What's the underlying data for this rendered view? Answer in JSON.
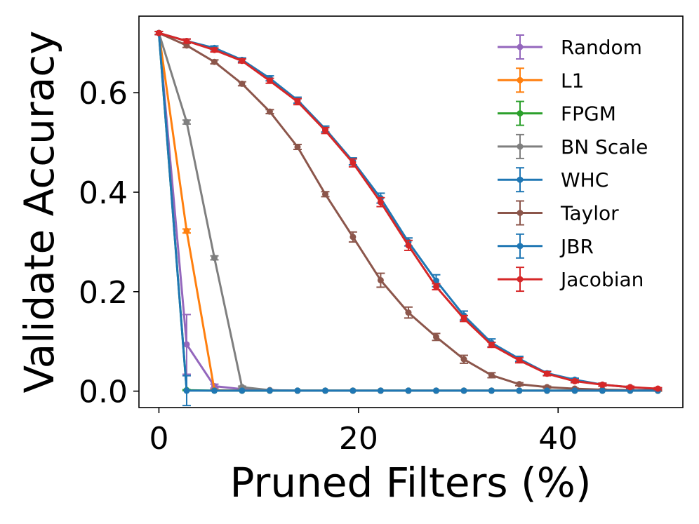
{
  "chart_data": {
    "type": "line",
    "xlabel": "Pruned Filters (%)",
    "ylabel": "Validate Accuracy",
    "xlim": [
      -2,
      52.5
    ],
    "ylim": [
      -0.033,
      0.754
    ],
    "xticks": [
      0,
      20,
      40
    ],
    "yticks": [
      0.0,
      0.2,
      0.4,
      0.6
    ],
    "legend_position": "top-right",
    "x": [
      0,
      2.78,
      5.56,
      8.33,
      11.11,
      13.89,
      16.67,
      19.44,
      22.22,
      25.0,
      27.78,
      30.56,
      33.33,
      36.11,
      38.89,
      41.67,
      44.44,
      47.22,
      50.0
    ],
    "series": [
      {
        "name": "Random",
        "color": "#9467bd",
        "values": [
          0.72,
          0.094,
          0.01,
          0.004,
          0.002,
          0.001,
          0.001,
          0.001,
          0.001,
          0.001,
          0.001,
          0.001,
          0.001,
          0.001,
          0.001,
          0.001,
          0.001,
          0.001,
          0.001
        ],
        "errors": [
          0.003,
          0.06,
          0.004,
          0.002,
          0.001,
          0.0,
          0.0,
          0.0,
          0.0,
          0.0,
          0.0,
          0.0,
          0.0,
          0.0,
          0.0,
          0.0,
          0.0,
          0.0,
          0.0
        ]
      },
      {
        "name": "L1",
        "color": "#ff7f0e",
        "values": [
          0.72,
          0.322,
          0.002,
          0.001,
          0.001,
          0.001,
          0.001,
          0.001,
          0.001,
          0.001,
          0.001,
          0.001,
          0.001,
          0.001,
          0.001,
          0.001,
          0.001,
          0.001,
          0.001
        ],
        "errors": [
          0.003,
          0.004,
          0.001,
          0.0,
          0.0,
          0.0,
          0.0,
          0.0,
          0.0,
          0.0,
          0.0,
          0.0,
          0.0,
          0.0,
          0.0,
          0.0,
          0.0,
          0.0,
          0.0
        ]
      },
      {
        "name": "FPGM",
        "color": "#2ca02c",
        "values": [
          0.72,
          0.002,
          0.001,
          0.001,
          0.001,
          0.001,
          0.001,
          0.001,
          0.001,
          0.001,
          0.001,
          0.001,
          0.001,
          0.001,
          0.001,
          0.001,
          0.001,
          0.001,
          0.001
        ],
        "errors": [
          0.003,
          0.001,
          0.0,
          0.0,
          0.0,
          0.0,
          0.0,
          0.0,
          0.0,
          0.0,
          0.0,
          0.0,
          0.0,
          0.0,
          0.0,
          0.0,
          0.0,
          0.0,
          0.0
        ]
      },
      {
        "name": "BN Scale",
        "color": "#7f7f7f",
        "values": [
          0.72,
          0.541,
          0.268,
          0.008,
          0.002,
          0.001,
          0.001,
          0.001,
          0.001,
          0.001,
          0.001,
          0.001,
          0.001,
          0.001,
          0.001,
          0.001,
          0.001,
          0.001,
          0.001
        ],
        "errors": [
          0.003,
          0.004,
          0.004,
          0.002,
          0.001,
          0.0,
          0.0,
          0.0,
          0.0,
          0.0,
          0.0,
          0.0,
          0.0,
          0.0,
          0.0,
          0.0,
          0.0,
          0.0,
          0.0
        ]
      },
      {
        "name": "WHC",
        "color": "#1f77b4",
        "values": [
          0.72,
          0.704,
          0.69,
          0.666,
          0.629,
          0.585,
          0.527,
          0.462,
          0.388,
          0.3,
          0.222,
          0.152,
          0.097,
          0.065,
          0.036,
          0.023,
          0.013,
          0.008,
          0.004
        ],
        "errors": [
          0.003,
          0.004,
          0.004,
          0.004,
          0.005,
          0.006,
          0.006,
          0.007,
          0.01,
          0.008,
          0.012,
          0.009,
          0.008,
          0.005,
          0.004,
          0.003,
          0.003,
          0.002,
          0.002
        ]
      },
      {
        "name": "Taylor",
        "color": "#8c564b",
        "values": [
          0.72,
          0.695,
          0.662,
          0.618,
          0.562,
          0.491,
          0.396,
          0.31,
          0.223,
          0.158,
          0.109,
          0.064,
          0.032,
          0.014,
          0.008,
          0.005,
          0.003,
          0.002,
          0.001
        ],
        "errors": [
          0.003,
          0.004,
          0.004,
          0.004,
          0.004,
          0.005,
          0.005,
          0.01,
          0.014,
          0.011,
          0.007,
          0.008,
          0.005,
          0.003,
          0.002,
          0.001,
          0.001,
          0.001,
          0.001
        ]
      },
      {
        "name": "JBR",
        "color": "#1f77b4",
        "values": [
          0.72,
          0.001,
          0.001,
          0.001,
          0.001,
          0.001,
          0.001,
          0.001,
          0.001,
          0.001,
          0.001,
          0.001,
          0.001,
          0.001,
          0.001,
          0.001,
          0.001,
          0.001,
          0.001
        ],
        "errors": [
          0.003,
          0.03,
          0.0,
          0.0,
          0.0,
          0.0,
          0.0,
          0.0,
          0.0,
          0.0,
          0.0,
          0.0,
          0.0,
          0.0,
          0.0,
          0.0,
          0.0,
          0.0,
          0.0
        ]
      },
      {
        "name": "Jacobian",
        "color": "#d62728",
        "values": [
          0.72,
          0.704,
          0.686,
          0.664,
          0.624,
          0.582,
          0.524,
          0.459,
          0.38,
          0.293,
          0.21,
          0.146,
          0.093,
          0.062,
          0.035,
          0.02,
          0.013,
          0.008,
          0.005
        ],
        "errors": [
          0.003,
          0.004,
          0.004,
          0.004,
          0.005,
          0.006,
          0.006,
          0.008,
          0.009,
          0.01,
          0.006,
          0.006,
          0.005,
          0.005,
          0.004,
          0.003,
          0.003,
          0.002,
          0.002
        ]
      }
    ]
  }
}
